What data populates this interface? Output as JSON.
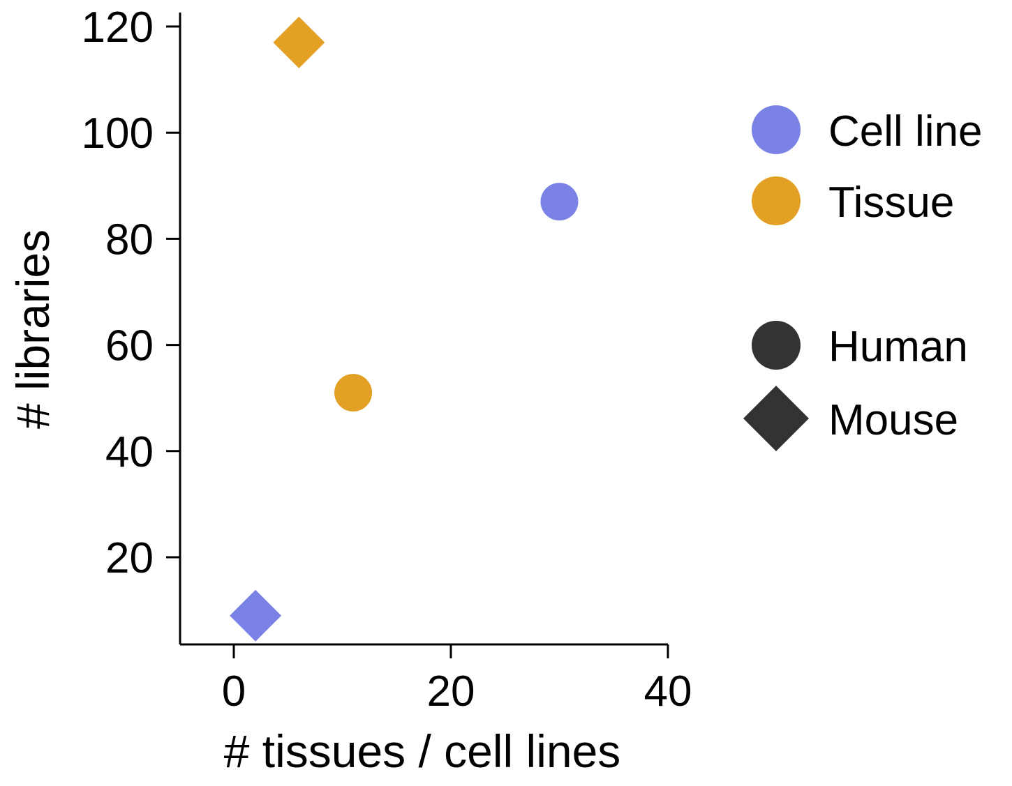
{
  "chart_data": {
    "type": "scatter",
    "title": "",
    "xlabel": "# tissues / cell lines",
    "ylabel": "# libraries",
    "xlim": [
      -5,
      40
    ],
    "ylim": [
      0,
      123
    ],
    "xticks": [
      0,
      20,
      40
    ],
    "yticks": [
      20,
      40,
      60,
      80,
      100,
      120
    ],
    "xtick_labels": [
      "0",
      "20",
      "40"
    ],
    "ytick_labels": [
      "20",
      "40",
      "60",
      "80",
      "100",
      "120"
    ],
    "grid": false,
    "legend_position": "right",
    "points": [
      {
        "x": 2,
        "y": 9,
        "source": "Cell line",
        "species": "Mouse"
      },
      {
        "x": 6,
        "y": 117,
        "source": "Tissue",
        "species": "Mouse"
      },
      {
        "x": 11,
        "y": 51,
        "source": "Tissue",
        "species": "Human"
      },
      {
        "x": 30,
        "y": 87,
        "source": "Cell line",
        "species": "Human"
      }
    ],
    "color_legend": [
      {
        "label": "Cell line",
        "color": "#7b82e6"
      },
      {
        "label": "Tissue",
        "color": "#e2a024"
      }
    ],
    "shape_legend": [
      {
        "label": "Human",
        "shape": "circle"
      },
      {
        "label": "Mouse",
        "shape": "diamond"
      }
    ],
    "shape_legend_color": "#333333"
  }
}
